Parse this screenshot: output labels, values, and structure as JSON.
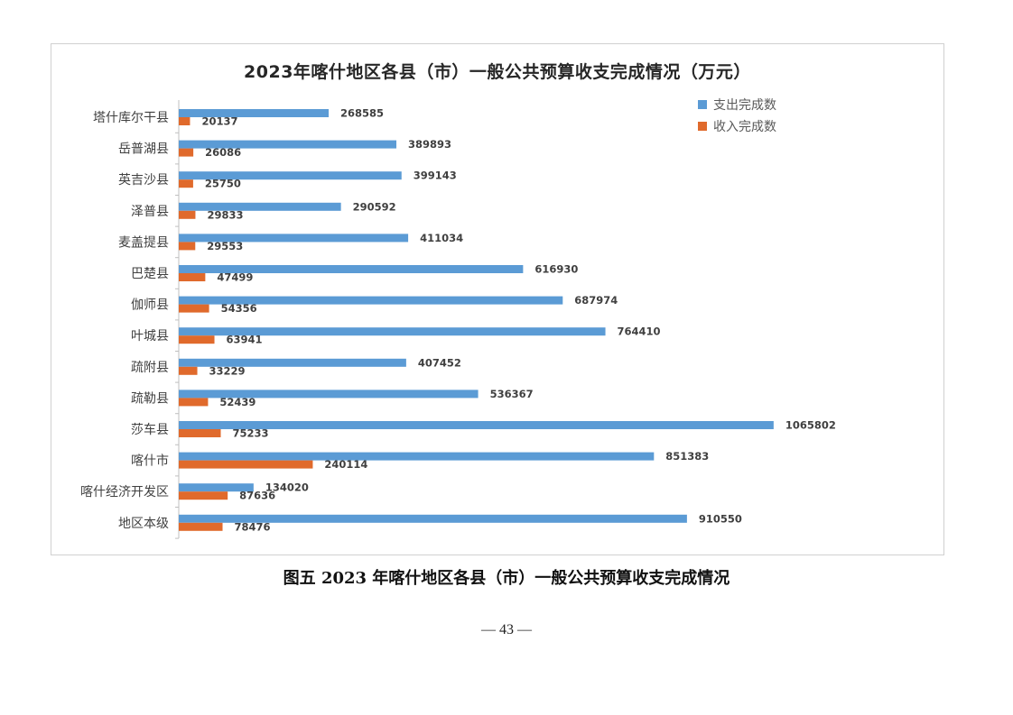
{
  "chart_data": {
    "type": "bar",
    "orientation": "horizontal",
    "title": "2023年喀什地区各县（市）一般公共预算收支完成情况（万元）",
    "categories": [
      "塔什库尔干县",
      "岳普湖县",
      "英吉沙县",
      "泽普县",
      "麦盖提县",
      "巴楚县",
      "伽师县",
      "叶城县",
      "疏附县",
      "疏勒县",
      "莎车县",
      "喀什市",
      "喀什经济开发区",
      "地区本级"
    ],
    "series": [
      {
        "name": "支出完成数",
        "color": "#5b9bd5",
        "values": [
          268585,
          389893,
          399143,
          290592,
          411034,
          616930,
          687974,
          764410,
          407452,
          536367,
          1065802,
          851383,
          134020,
          910550
        ]
      },
      {
        "name": "收入完成数",
        "color": "#e06a2c",
        "values": [
          20137,
          26086,
          25750,
          29833,
          29553,
          47499,
          54356,
          63941,
          33229,
          52439,
          75233,
          240114,
          87636,
          78476
        ]
      }
    ],
    "xlim": [
      0,
      1100000
    ],
    "grid": false,
    "legend_position": "top-right",
    "data_labels": true
  },
  "caption": "图五  2023 年喀什地区各县（市）一般公共预算收支完成情况",
  "page_number": "— 43 —"
}
